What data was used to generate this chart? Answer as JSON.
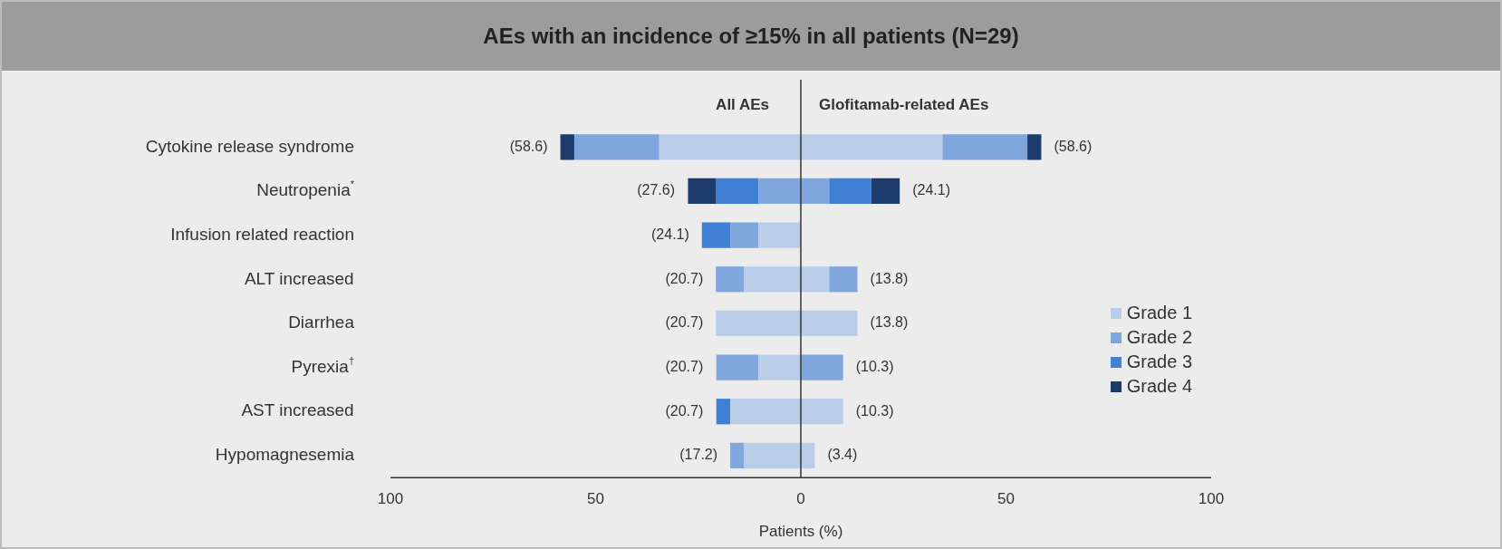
{
  "chart_data": {
    "type": "bar",
    "orientation": "horizontal",
    "stacked": true,
    "title": "AEs with an incidence of ≥15% in all patients (N=29)",
    "xlabel": "Patients (%)",
    "categories": [
      "Cytokine release syndrome",
      "Neutropenia$^{*}$",
      "Infusion related reaction",
      "ALT increased",
      "Diarrhea",
      "Pyrexia$^{†}$",
      "AST increased",
      "Hypomagnesemia"
    ],
    "series": [
      {
        "name": "Grade 1",
        "color": "#b9cde9",
        "values": [
          -34.5,
          0,
          -10.3,
          -13.8,
          -20.7,
          -10.3,
          -17.2,
          -13.8
        ]
      },
      {
        "name": "Grade 2",
        "color": "#7fa6dd",
        "values": [
          -20.7,
          -10.3,
          -6.9,
          -6.9,
          0,
          -10.3,
          0,
          -3.4
        ]
      },
      {
        "name": "Grade 3",
        "color": "#3f80d5",
        "values": [
          0,
          -10.3,
          -6.9,
          0,
          0,
          0,
          -3.4,
          0
        ]
      },
      {
        "name": "Grade 4",
        "color": "#1d3b6c",
        "values": [
          -3.4,
          -6.9,
          0,
          0,
          0,
          0,
          0,
          0
        ]
      },
      {
        "color": "#b9cde9",
        "values": [
          34.5,
          0,
          0,
          6.9,
          13.8,
          0,
          10.3,
          3.4
        ]
      },
      {
        "color": "#7fa6dd",
        "values": [
          20.7,
          6.9,
          0,
          6.9,
          0,
          10.3,
          0,
          0
        ]
      },
      {
        "color": "#3f80d5",
        "values": [
          0,
          10.3,
          0,
          0,
          0,
          0,
          0,
          0
        ]
      },
      {
        "color": "#1d3b6c",
        "values": [
          3.4,
          6.9,
          0,
          0,
          0,
          0,
          0,
          0
        ]
      }
    ],
    "xlim": [
      -100,
      100
    ],
    "xticks": [
      {
        "value": -100,
        "label": "100"
      },
      {
        "value": -50,
        "label": "50"
      },
      0,
      50,
      100
    ],
    "ref_lines": [
      {
        "axis": "x",
        "value": 0,
        "color": "#333333"
      }
    ],
    "legend": "right",
    "grid": false,
    "annotations": [
      "All AEs",
      "Glofitamab-related AEs",
      {
        "text": "(58.6)",
        "x": -58.6,
        "y": "Cytokine release syndrome"
      },
      {
        "text": "(58.6)",
        "x": 58.6,
        "y": "Cytokine release syndrome"
      },
      {
        "text": "(27.6)",
        "x": -27.6,
        "y": "Neutropenia$^{*}$"
      },
      {
        "text": "(24.1)",
        "x": 24.1,
        "y": "Neutropenia$^{*}$"
      },
      {
        "text": "(24.1)",
        "x": -24.1,
        "y": "Infusion related reaction"
      },
      {
        "text": "(20.7)",
        "x": -20.7,
        "y": "ALT increased"
      },
      {
        "text": "(13.8)",
        "x": 13.8,
        "y": "ALT increased"
      },
      {
        "text": "(20.7)",
        "x": -20.7,
        "y": "Diarrhea"
      },
      {
        "text": "(13.8)",
        "x": 13.8,
        "y": "Diarrhea"
      },
      {
        "text": "(20.7)",
        "x": -20.7,
        "y": "Pyrexia$^{†}$"
      },
      {
        "text": "(10.3)",
        "x": 10.3,
        "y": "Pyrexia$^{†}$"
      },
      {
        "text": "(20.7)",
        "x": -20.7,
        "y": "AST increased"
      },
      {
        "text": "(10.3)",
        "x": 10.3,
        "y": "AST increased"
      },
      {
        "text": "(17.2)",
        "x": -17.2,
        "y": "Hypomagnesemia"
      },
      {
        "text": "(3.4)",
        "x": 3.4,
        "y": "Hypomagnesemia"
      }
    ]
  }
}
